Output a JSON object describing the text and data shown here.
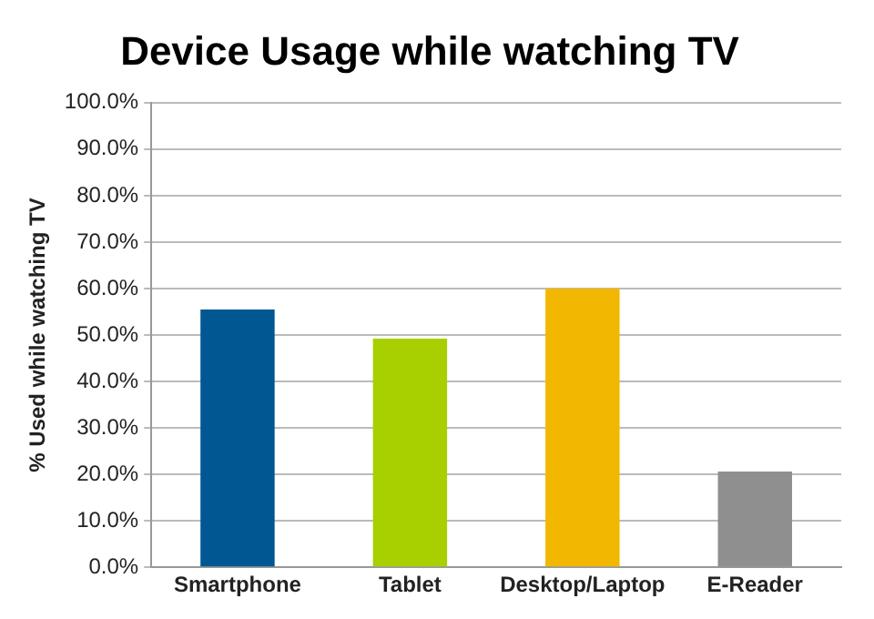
{
  "chart_data": {
    "type": "bar",
    "title": "Device Usage while watching TV",
    "ylabel": "% Used while watching TV",
    "categories": [
      "Smartphone",
      "Tablet",
      "Desktop/Laptop",
      "E-Reader"
    ],
    "values": [
      55.5,
      49.2,
      60,
      20.6
    ],
    "colors": [
      "#005792",
      "#a8d000",
      "#f2b700",
      "#8f8f8f"
    ],
    "ylim": [
      0,
      100
    ],
    "yticks": [
      {
        "value": 0,
        "label": "0.0%"
      },
      {
        "value": 10,
        "label": "10.0%"
      },
      {
        "value": 20,
        "label": "20.0%"
      },
      {
        "value": 30,
        "label": "30.0%"
      },
      {
        "value": 40,
        "label": "40.0%"
      },
      {
        "value": 50,
        "label": "50.0%"
      },
      {
        "value": 60,
        "label": "60.0%"
      },
      {
        "value": 70,
        "label": "70.0%"
      },
      {
        "value": 80,
        "label": "80.0%"
      },
      {
        "value": 90,
        "label": "90.0%"
      },
      {
        "value": 100,
        "label": "100.0%"
      }
    ],
    "grid": "y",
    "legend": false
  }
}
